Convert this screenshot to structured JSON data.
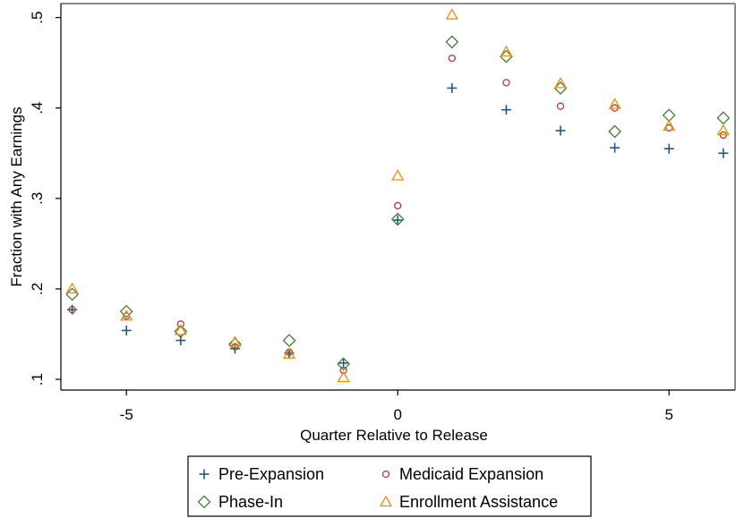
{
  "chart_data": {
    "type": "scatter",
    "xlabel": "Quarter Relative to Release",
    "ylabel": "Fraction with Any Earnings",
    "xlim": [
      -6.2,
      6.2
    ],
    "ylim": [
      0.095,
      0.5
    ],
    "xticks": [
      -5,
      0,
      5
    ],
    "xtick_labels": [
      "-5",
      "0",
      "5"
    ],
    "yticks": [
      0.1,
      0.2,
      0.3,
      0.4,
      0.5
    ],
    "ytick_labels": [
      ".1",
      ".2",
      ".3",
      ".4",
      ".5"
    ],
    "grid": false,
    "legend_position": "bottom",
    "x": [
      -6,
      -5,
      -4,
      -3,
      -2,
      -1,
      0,
      1,
      2,
      3,
      4,
      5,
      6
    ],
    "series": [
      {
        "name": "Pre-Expansion",
        "marker": "plus",
        "color": "#1f5a8a",
        "values": [
          0.177,
          0.154,
          0.143,
          0.134,
          0.129,
          0.118,
          0.276,
          0.422,
          0.398,
          0.375,
          0.356,
          0.355,
          0.35
        ]
      },
      {
        "name": "Medicaid Expansion",
        "marker": "circle",
        "color": "#b23c3c",
        "values": [
          0.177,
          0.17,
          0.161,
          0.136,
          0.13,
          0.11,
          0.292,
          0.455,
          0.428,
          0.402,
          0.4,
          0.378,
          0.37
        ]
      },
      {
        "name": "Phase-In",
        "marker": "diamond",
        "color": "#4a7a3a",
        "values": [
          0.194,
          0.175,
          0.153,
          0.139,
          0.143,
          0.117,
          0.277,
          0.473,
          0.457,
          0.422,
          0.374,
          0.392,
          0.389
        ]
      },
      {
        "name": "Enrollment Assistance",
        "marker": "triangle",
        "color": "#e8900c",
        "values": [
          0.2,
          0.17,
          0.154,
          0.141,
          0.128,
          0.102,
          0.325,
          0.503,
          0.462,
          0.427,
          0.404,
          0.38,
          0.375
        ]
      }
    ]
  }
}
